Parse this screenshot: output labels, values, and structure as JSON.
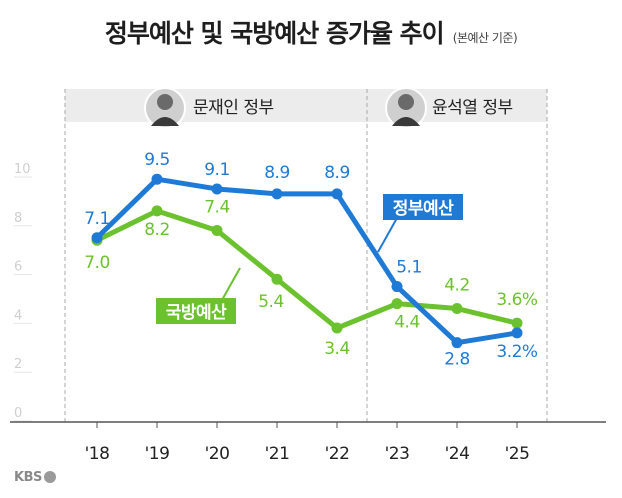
{
  "header": {
    "title": "정부예산 및 국방예산 증가율 추이",
    "subtitle": "(본예산 기준)"
  },
  "periods": [
    {
      "label": "문재인 정부",
      "from": "'18",
      "to": "'22"
    },
    {
      "label": "윤석열 정부",
      "from": "'23",
      "to": "'25"
    }
  ],
  "chart_data": {
    "type": "line",
    "categories": [
      "'18",
      "'19",
      "'20",
      "'21",
      "'22",
      "'23",
      "'24",
      "'25"
    ],
    "ylim": [
      0,
      10
    ],
    "yticks": [
      0,
      2,
      4,
      6,
      8,
      10
    ],
    "series": [
      {
        "name": "정부예산",
        "color": "#1f7ad6",
        "values": [
          7.1,
          9.5,
          9.1,
          8.9,
          8.9,
          5.1,
          2.8,
          3.2
        ],
        "labels": [
          "7.1",
          "9.5",
          "9.1",
          "8.9",
          "8.9",
          "5.1",
          "2.8",
          "3.2%"
        ]
      },
      {
        "name": "국방예산",
        "color": "#6cc22e",
        "values": [
          7.0,
          8.2,
          7.4,
          5.4,
          3.4,
          4.4,
          4.2,
          3.6
        ],
        "labels": [
          "7.0",
          "8.2",
          "7.4",
          "5.4",
          "3.4",
          "4.4",
          "4.2",
          "3.6%"
        ]
      }
    ]
  },
  "logo": {
    "text": "KBS"
  }
}
